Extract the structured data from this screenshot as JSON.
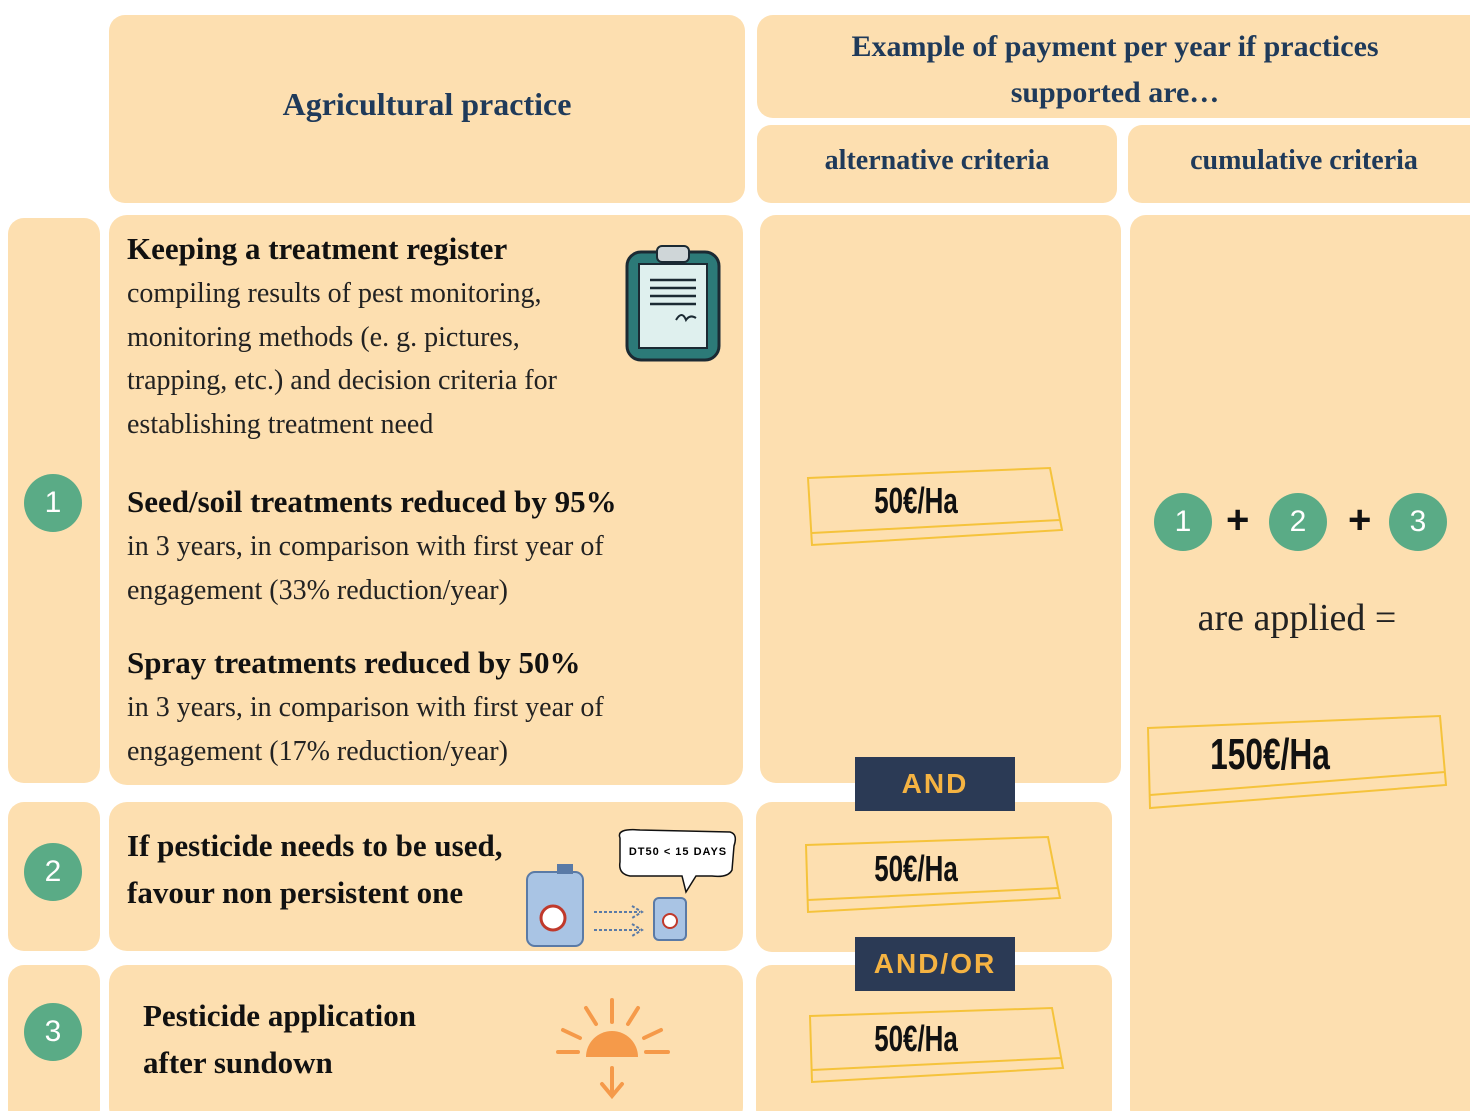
{
  "header": {
    "practice": "Agricultural practice",
    "payment": "Example of payment per year if practices supported are…",
    "alternative": "alternative criteria",
    "cumulative": "cumulative criteria"
  },
  "rows": [
    {
      "number": "1",
      "items": [
        {
          "title": "Keeping a treatment register",
          "lines": [
            "compiling results of pest monitoring,",
            "monitoring methods (e. g. pictures,",
            "trapping, etc.) and decision criteria for",
            "establishing treatment need"
          ]
        },
        {
          "title": "Seed/soil treatments reduced by 95%",
          "lines": [
            "in 3 years, in comparison with first year of",
            "engagement (33% reduction/year)"
          ]
        },
        {
          "title": "Spray treatments reduced by 50%",
          "lines": [
            "in 3 years, in comparison with first year of",
            "engagement (17% reduction/year)"
          ]
        }
      ],
      "payment": "50€/Ha"
    },
    {
      "number": "2",
      "lines": [
        "If pesticide needs to be used,",
        "favour non persistent one"
      ],
      "badge": "DT50 < 15 DAYS",
      "payment": "50€/Ha"
    },
    {
      "number": "3",
      "lines": [
        "Pesticide application",
        "after sundown"
      ],
      "payment": "50€/Ha"
    }
  ],
  "connectors": [
    "AND",
    "AND/OR"
  ],
  "cumulative": {
    "operator": "+",
    "text": "are applied =",
    "payment": "150€/Ha"
  }
}
